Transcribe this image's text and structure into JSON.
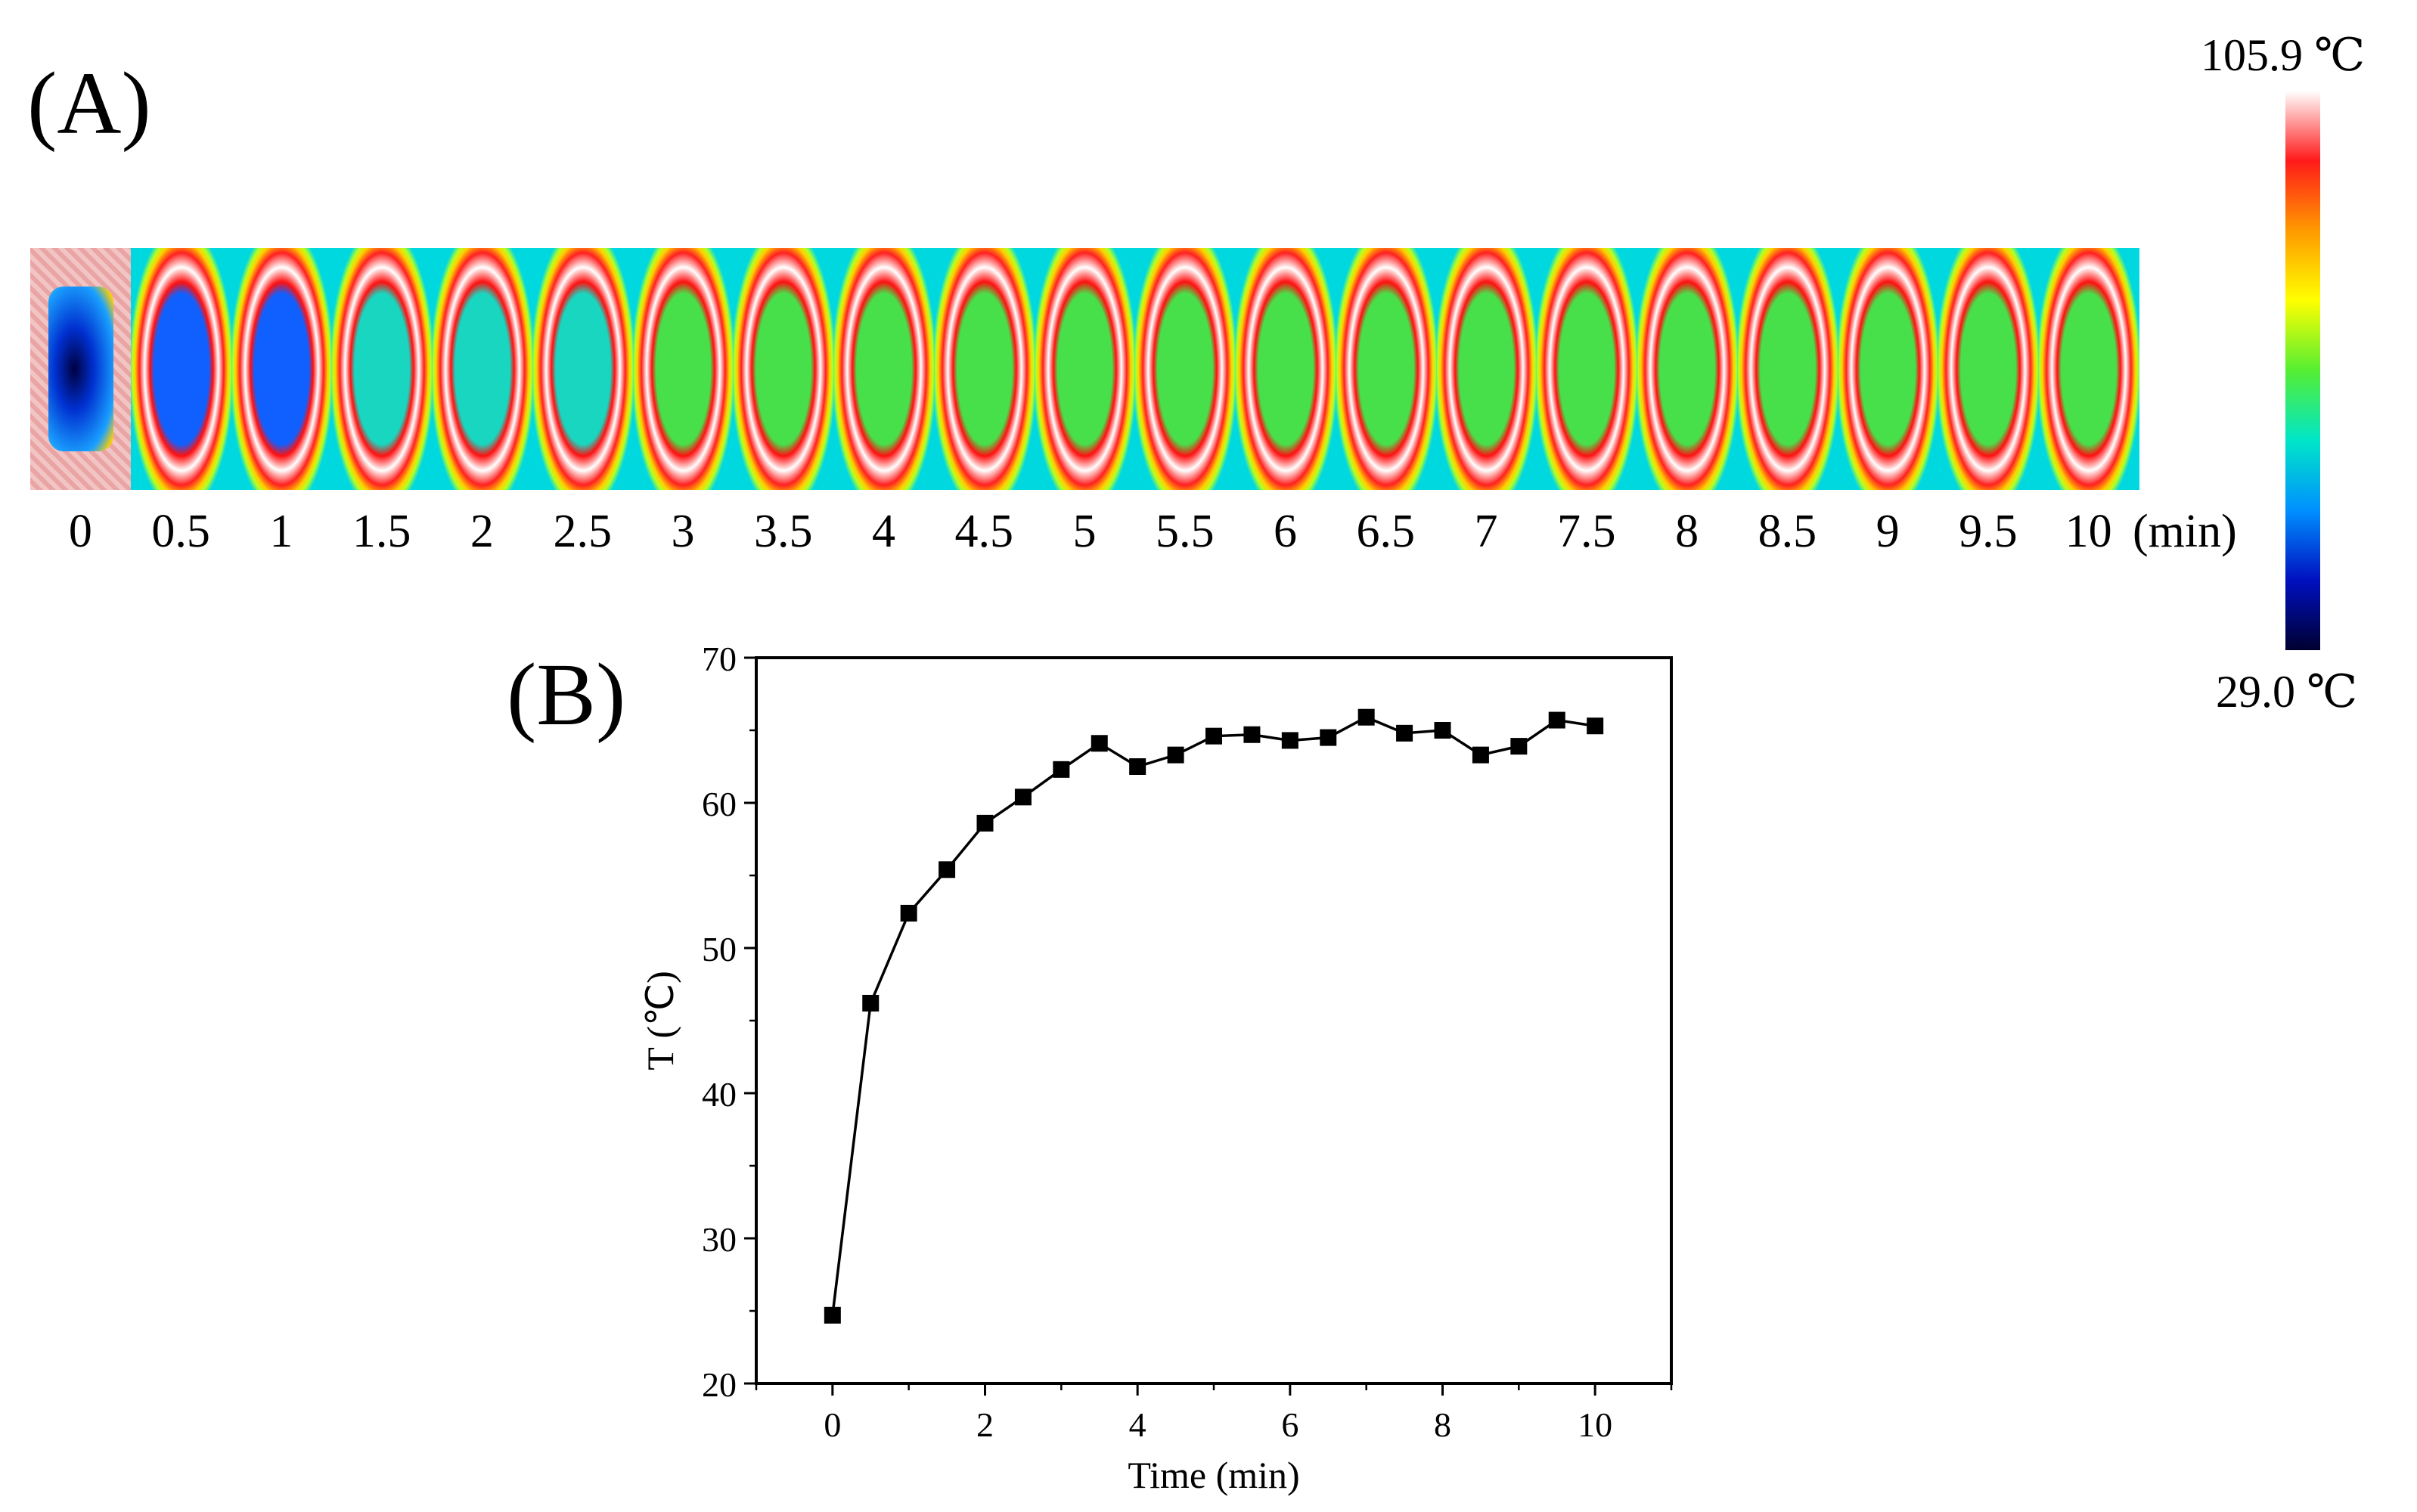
{
  "panel_a": {
    "label": "(A)",
    "time_labels": [
      "0",
      "0.5",
      "1",
      "1.5",
      "2",
      "2.5",
      "3",
      "3.5",
      "4",
      "4.5",
      "5",
      "5.5",
      "6",
      "6.5",
      "7",
      "7.5",
      "8",
      "8.5",
      "9",
      "9.5",
      "10"
    ],
    "time_unit": "(min)",
    "colorbar": {
      "max_label": "105.9 ℃",
      "min_label": "29.0 ℃",
      "colors": [
        "#ffffff",
        "#ff1a1a",
        "#ff9a00",
        "#ffff00",
        "#55ee33",
        "#00e6c8",
        "#0090ff",
        "#0010c0",
        "#000030"
      ]
    }
  },
  "panel_b": {
    "label": "(B)"
  },
  "chart_data": {
    "type": "line",
    "xlabel": "Time (min)",
    "ylabel": "T (℃)",
    "xlim": [
      -1,
      11
    ],
    "ylim": [
      20,
      70
    ],
    "xticks": [
      0,
      2,
      4,
      6,
      8,
      10
    ],
    "yticks": [
      20,
      30,
      40,
      50,
      60,
      70
    ],
    "grid": false,
    "marker": "square",
    "series": [
      {
        "x": [
          0,
          0.5,
          1,
          1.5,
          2,
          2.5,
          3,
          3.5,
          4,
          4.5,
          5,
          5.5,
          6,
          6.5,
          7,
          7.5,
          8,
          8.5,
          9,
          9.5,
          10
        ],
        "values": [
          24.7,
          46.2,
          52.4,
          55.4,
          58.6,
          60.4,
          62.3,
          64.1,
          62.5,
          63.3,
          64.6,
          64.7,
          64.3,
          64.5,
          65.9,
          64.8,
          65.0,
          63.3,
          63.9,
          65.7,
          65.3
        ]
      }
    ]
  }
}
